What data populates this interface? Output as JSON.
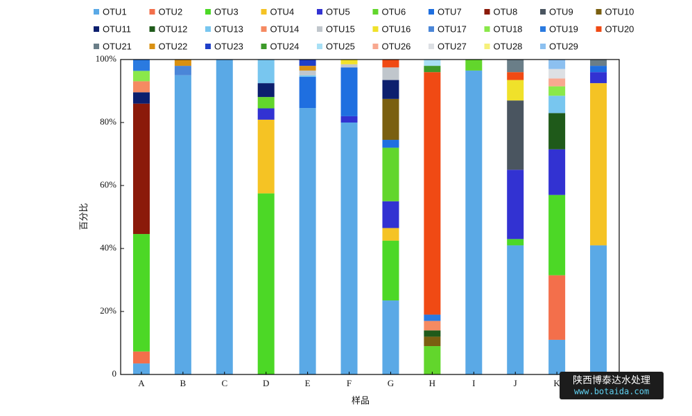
{
  "chart_data": {
    "type": "stacked_bar",
    "x_label": "样品",
    "y_label": "百分比",
    "categories": [
      "A",
      "B",
      "C",
      "D",
      "E",
      "F",
      "G",
      "H",
      "I",
      "J",
      "K",
      null
    ],
    "ylim": [
      0,
      100
    ],
    "yticks": [
      0,
      {
        "value": 20,
        "label": "20%"
      },
      {
        "value": 40,
        "label": "40%"
      },
      {
        "value": 60,
        "label": "60%"
      },
      {
        "value": 80,
        "label": "80%"
      },
      {
        "value": 100,
        "label": "100%"
      }
    ],
    "series": [
      {
        "name": "OTU1",
        "color": "#5aa9e6",
        "values": [
          3.5,
          95,
          100,
          0,
          84.6,
          80,
          23.5,
          0,
          96.5,
          41,
          11,
          41
        ]
      },
      {
        "name": "OTU2",
        "color": "#f36f4b",
        "values": [
          3.8,
          0,
          0,
          0,
          0,
          0,
          0,
          0,
          0,
          0,
          20.5,
          0
        ]
      },
      {
        "name": "OTU3",
        "color": "#4cd826",
        "values": [
          37.3,
          0,
          0,
          57.5,
          0,
          0,
          19,
          0,
          0,
          2,
          25.5,
          0
        ]
      },
      {
        "name": "OTU4",
        "color": "#f5c324",
        "values": [
          0,
          0,
          0,
          23.4,
          0,
          0,
          4,
          0,
          0,
          0,
          0,
          51.5
        ]
      },
      {
        "name": "OTU5",
        "color": "#3232d2",
        "values": [
          0,
          0,
          0,
          3.6,
          0,
          2,
          8.5,
          0,
          0,
          22,
          14.5,
          3.5
        ]
      },
      {
        "name": "OTU6",
        "color": "#62d62c",
        "values": [
          0,
          0,
          0,
          3.6,
          0,
          0,
          17,
          9,
          3.5,
          0,
          0,
          0
        ]
      },
      {
        "name": "OTU7",
        "color": "#1f6fe0",
        "values": [
          0,
          0,
          0,
          0,
          9.9,
          15.5,
          2.5,
          0,
          0,
          0,
          0,
          2
        ]
      },
      {
        "name": "OTU8",
        "color": "#8b1a0a",
        "values": [
          41.4,
          0,
          0,
          0,
          0,
          0,
          0,
          0,
          0,
          0,
          0,
          0
        ]
      },
      {
        "name": "OTU9",
        "color": "#4a5560",
        "values": [
          0,
          0,
          0,
          0,
          0,
          0,
          0,
          0,
          0,
          22,
          0,
          0
        ]
      },
      {
        "name": "OTU10",
        "color": "#7a5f10",
        "values": [
          0,
          0,
          0,
          0,
          0,
          0,
          13,
          3,
          0,
          0,
          0,
          0
        ]
      },
      {
        "name": "OTU11",
        "color": "#0c1f6e",
        "values": [
          3.6,
          0,
          0,
          4.4,
          0,
          0,
          6,
          0,
          0,
          0,
          0,
          0
        ]
      },
      {
        "name": "OTU12",
        "color": "#1f5a1a",
        "values": [
          0,
          0,
          0,
          0,
          0,
          0,
          0,
          2,
          0,
          0,
          11.5,
          0
        ]
      },
      {
        "name": "OTU13",
        "color": "#78c6ef",
        "values": [
          0,
          0,
          0,
          7.5,
          0.5,
          0,
          0,
          0,
          0,
          0,
          5.5,
          0
        ]
      },
      {
        "name": "OTU14",
        "color": "#f58a62",
        "values": [
          3.5,
          0,
          0,
          0,
          0,
          0,
          0,
          3,
          0,
          0,
          0,
          0
        ]
      },
      {
        "name": "OTU15",
        "color": "#c0c6cc",
        "values": [
          0,
          0,
          0,
          0,
          1.5,
          1,
          4,
          0,
          0,
          0,
          0,
          0
        ]
      },
      {
        "name": "OTU16",
        "color": "#f0e12a",
        "values": [
          0,
          0,
          0,
          0,
          0,
          1.5,
          0,
          0,
          0,
          6.5,
          0,
          0
        ]
      },
      {
        "name": "OTU17",
        "color": "#4a86d8",
        "values": [
          0,
          3,
          0,
          0,
          0,
          0,
          0,
          0,
          0,
          0,
          0,
          0
        ]
      },
      {
        "name": "OTU18",
        "color": "#8ae84a",
        "values": [
          3.3,
          0,
          0,
          0,
          0,
          0,
          0,
          0,
          0,
          0,
          3,
          0
        ]
      },
      {
        "name": "OTU19",
        "color": "#2a7ae0",
        "values": [
          3.6,
          0,
          0,
          0,
          0,
          0,
          0,
          2,
          0,
          0,
          0,
          0
        ]
      },
      {
        "name": "OTU20",
        "color": "#f04a14",
        "values": [
          0,
          0,
          0,
          0,
          0,
          0,
          2.5,
          77,
          0,
          2.5,
          0,
          0
        ]
      },
      {
        "name": "OTU21",
        "color": "#6a7e88",
        "values": [
          0,
          0,
          0,
          0,
          0,
          0,
          0,
          0,
          0,
          4,
          0,
          2
        ]
      },
      {
        "name": "OTU22",
        "color": "#d99012",
        "values": [
          0,
          2,
          0,
          0,
          1.5,
          0,
          0,
          0,
          0,
          0,
          0,
          0
        ]
      },
      {
        "name": "OTU23",
        "color": "#1f3fc8",
        "values": [
          0,
          0,
          0,
          0,
          2,
          0,
          0,
          0,
          0,
          0,
          0,
          0
        ]
      },
      {
        "name": "OTU24",
        "color": "#3d9a2a",
        "values": [
          0,
          0,
          0,
          0,
          0,
          0,
          0,
          2,
          0,
          0,
          0,
          0
        ]
      },
      {
        "name": "OTU25",
        "color": "#a8e0f5",
        "values": [
          0,
          0,
          0,
          0,
          0,
          0,
          0,
          2,
          0,
          0,
          0,
          0
        ]
      },
      {
        "name": "OTU26",
        "color": "#f8a890",
        "values": [
          0,
          0,
          0,
          0,
          0,
          0,
          0,
          0,
          0,
          0,
          2.5,
          0
        ]
      },
      {
        "name": "OTU27",
        "color": "#dde0e4",
        "values": [
          0,
          0,
          0,
          0,
          0,
          0,
          0,
          0,
          0,
          0,
          3,
          0
        ]
      },
      {
        "name": "OTU28",
        "color": "#f6f07a",
        "values": [
          0,
          0,
          0,
          0,
          0,
          0,
          0,
          0,
          0,
          0,
          0,
          0
        ]
      },
      {
        "name": "OTU29",
        "color": "#8cc0f0",
        "values": [
          0,
          0,
          0,
          0,
          0,
          0,
          0,
          0,
          0,
          0,
          3,
          0
        ]
      }
    ],
    "watermark": [
      "陕西博泰达水处理",
      "www.botaida.com"
    ]
  }
}
